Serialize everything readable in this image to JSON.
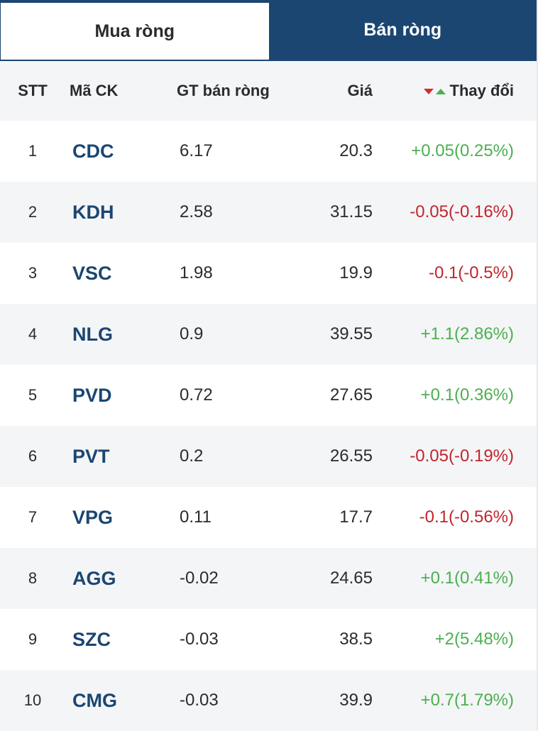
{
  "tabs": {
    "buy_label": "Mua ròng",
    "sell_label": "Bán ròng"
  },
  "table": {
    "headers": {
      "stt": "STT",
      "ma_ck": "Mã CK",
      "gt": "GT bán ròng",
      "gia": "Giá",
      "thay_doi": "Thay đổi"
    },
    "rows": [
      {
        "stt": "1",
        "ma": "CDC",
        "gt": "6.17",
        "gia": "20.3",
        "chg": "+0.05(0.25%)",
        "dir": "up"
      },
      {
        "stt": "2",
        "ma": "KDH",
        "gt": "2.58",
        "gia": "31.15",
        "chg": "-0.05(-0.16%)",
        "dir": "down"
      },
      {
        "stt": "3",
        "ma": "VSC",
        "gt": "1.98",
        "gia": "19.9",
        "chg": "-0.1(-0.5%)",
        "dir": "down"
      },
      {
        "stt": "4",
        "ma": "NLG",
        "gt": "0.9",
        "gia": "39.55",
        "chg": "+1.1(2.86%)",
        "dir": "up"
      },
      {
        "stt": "5",
        "ma": "PVD",
        "gt": "0.72",
        "gia": "27.65",
        "chg": "+0.1(0.36%)",
        "dir": "up"
      },
      {
        "stt": "6",
        "ma": "PVT",
        "gt": "0.2",
        "gia": "26.55",
        "chg": "-0.05(-0.19%)",
        "dir": "down"
      },
      {
        "stt": "7",
        "ma": "VPG",
        "gt": "0.11",
        "gia": "17.7",
        "chg": "-0.1(-0.56%)",
        "dir": "down"
      },
      {
        "stt": "8",
        "ma": "AGG",
        "gt": "-0.02",
        "gia": "24.65",
        "chg": "+0.1(0.41%)",
        "dir": "up"
      },
      {
        "stt": "9",
        "ma": "SZC",
        "gt": "-0.03",
        "gia": "38.5",
        "chg": "+2(5.48%)",
        "dir": "up"
      },
      {
        "stt": "10",
        "ma": "CMG",
        "gt": "-0.03",
        "gia": "39.9",
        "chg": "+0.7(1.79%)",
        "dir": "up"
      }
    ]
  },
  "colors": {
    "brand_navy": "#1b4671",
    "up_green": "#4caf50",
    "down_red": "#c0262d"
  }
}
